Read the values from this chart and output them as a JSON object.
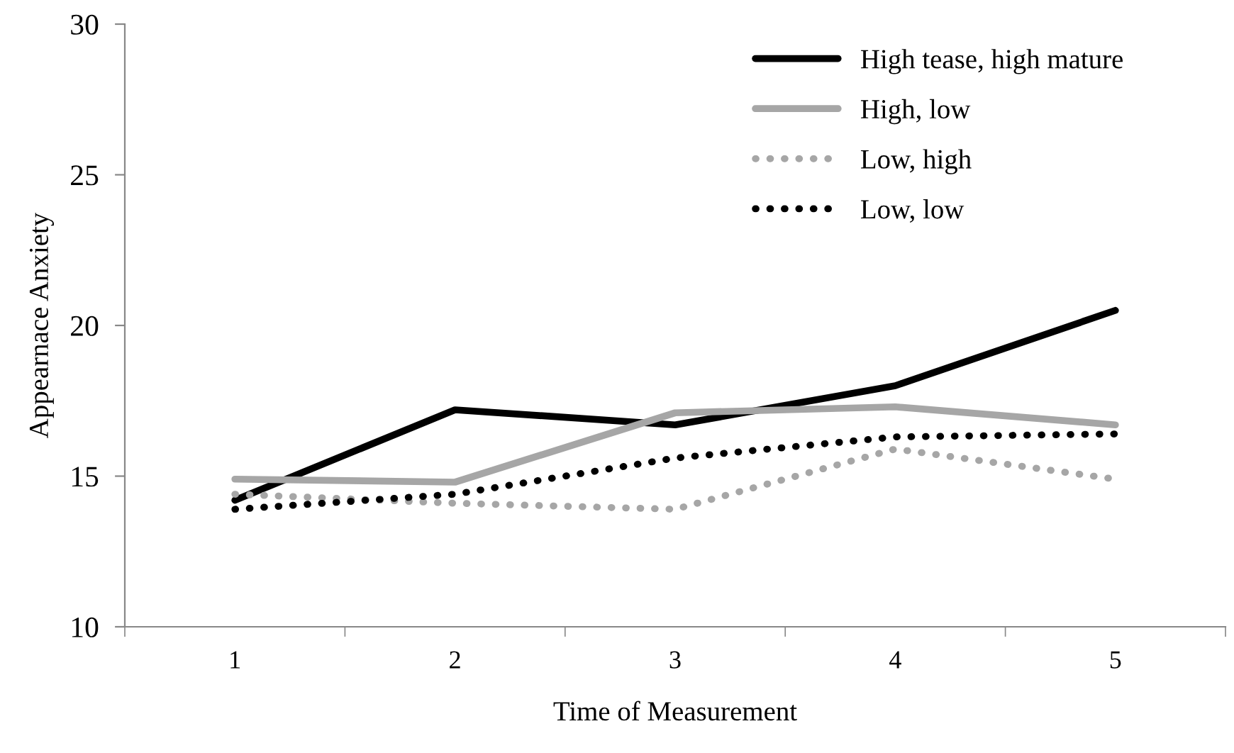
{
  "chart_data": {
    "type": "line",
    "xlabel": "Time of Measurement",
    "ylabel": "Appearnace Anxiety",
    "categories": [
      "1",
      "2",
      "3",
      "4",
      "5"
    ],
    "series": [
      {
        "name": "High tease, high mature",
        "color": "#000000",
        "line_style": "solid",
        "values": [
          14.2,
          17.2,
          16.7,
          18.0,
          20.5
        ]
      },
      {
        "name": "High, low",
        "color": "#a6a6a6",
        "line_style": "solid",
        "values": [
          14.9,
          14.8,
          17.1,
          17.3,
          16.7
        ]
      },
      {
        "name": "Low, high",
        "color": "#a6a6a6",
        "line_style": "dotted",
        "values": [
          14.4,
          14.1,
          13.9,
          15.9,
          14.9
        ]
      },
      {
        "name": "Low, low",
        "color": "#000000",
        "line_style": "dotted",
        "values": [
          13.9,
          14.4,
          15.6,
          16.3,
          16.4
        ]
      }
    ],
    "ylim": [
      10,
      30
    ],
    "yticks": [
      10,
      15,
      20,
      25,
      30
    ],
    "grid": false,
    "legend": "top right",
    "marker": "none"
  }
}
